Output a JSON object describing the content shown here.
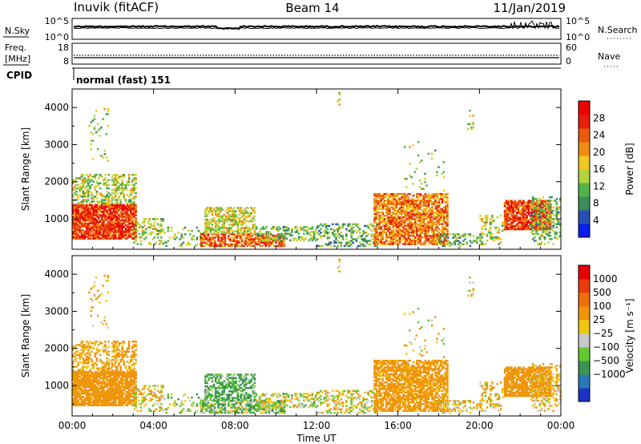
{
  "header": {
    "station": "Inuvik (fitACF)",
    "beam": "Beam 14",
    "date": "11/Jan/2019"
  },
  "top_panels": {
    "nsky_label": "N.Sky",
    "nsky_ticks": [
      "10^5",
      "10^0"
    ],
    "nsearch_label": "N.Search",
    "nsearch_ticks": [
      "10^5",
      "10^0"
    ],
    "freq_label_1": "Freq.",
    "freq_label_2": "[MHz]",
    "freq_ticks": [
      "18",
      "8"
    ],
    "nave_label": "Nave",
    "nave_ticks": [
      "60",
      "0"
    ],
    "cpid_label": "CPID",
    "cpid_text": "normal (fast) 151"
  },
  "chart_data": [
    {
      "type": "heatmap",
      "name": "Power",
      "ylabel": "Slant Range [km]",
      "yticks": [
        "1000",
        "2000",
        "3000",
        "4000"
      ],
      "ylim": [
        180,
        4500
      ],
      "xlim": [
        0,
        24
      ],
      "xticks": [
        "00:00",
        "04:00",
        "08:00",
        "12:00",
        "16:00",
        "20:00",
        "00:00"
      ],
      "colorbar_label": "Power [dB]",
      "colorbar_ticks": [
        "4",
        "8",
        "12",
        "16",
        "20",
        "24",
        "28"
      ],
      "colorbar_range": [
        0,
        32
      ],
      "colorbar_colors": [
        "#0a1ef0",
        "#2850b4",
        "#3c8c5a",
        "#50b448",
        "#b4d23c",
        "#f0c81e",
        "#f08c14",
        "#ea5a0a",
        "#e61e0a",
        "#f00000"
      ]
    },
    {
      "type": "heatmap",
      "name": "Velocity",
      "ylabel": "Slant Range [km]",
      "yticks": [
        "1000",
        "2000",
        "3000",
        "4000"
      ],
      "ylim": [
        180,
        4500
      ],
      "xlim": [
        0,
        24
      ],
      "xticks": [
        "00:00",
        "04:00",
        "08:00",
        "12:00",
        "16:00",
        "20:00",
        "00:00"
      ],
      "xlabel": "Time UT",
      "colorbar_label": "Velocity [m s⁻¹]",
      "colorbar_ticks": [
        "1000",
        "500",
        "100",
        "25",
        "−25",
        "−100",
        "−500",
        "−1000"
      ],
      "colorbar_colors": [
        "#1e32c8",
        "#2878b4",
        "#3c9650",
        "#64c832",
        "#c8c8c8",
        "#f0c814",
        "#f0960a",
        "#f06e0a",
        "#ea3c0a",
        "#e60000"
      ]
    }
  ]
}
